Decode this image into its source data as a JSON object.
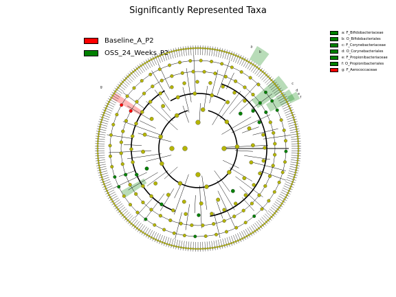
{
  "title": "Significantly Represented Taxa",
  "colors": {
    "baseline": "#ff0000",
    "oss": "#008000",
    "neutral_node": "#b5b500",
    "edge": "#000000"
  },
  "legend": [
    {
      "label": "Baseline_A_P2",
      "group": "baseline"
    },
    {
      "label": "OSS_24_Weeks_P2",
      "group": "oss"
    }
  ],
  "clade_legend": [
    {
      "label": "a: F_Bifidobacteriaceae",
      "group": "oss"
    },
    {
      "label": "b: O_Bifidobacteriales",
      "group": "oss"
    },
    {
      "label": "c: F_Corynebacteriaceae",
      "group": "oss"
    },
    {
      "label": "d: O_Corynebacteriales",
      "group": "oss"
    },
    {
      "label": "e: F_Propionibacteriaceae",
      "group": "oss"
    },
    {
      "label": "f: O_Propionibacteriales",
      "group": "oss"
    },
    {
      "label": "g: F_Aerococcaceae",
      "group": "baseline"
    }
  ],
  "clade_markers": [
    {
      "letter": "a",
      "group": "oss"
    },
    {
      "letter": "b",
      "group": "oss"
    },
    {
      "letter": "c",
      "group": "oss"
    },
    {
      "letter": "d",
      "group": "oss"
    },
    {
      "letter": "e",
      "group": "oss"
    },
    {
      "letter": "f",
      "group": "oss"
    },
    {
      "letter": "g",
      "group": "baseline"
    }
  ]
}
